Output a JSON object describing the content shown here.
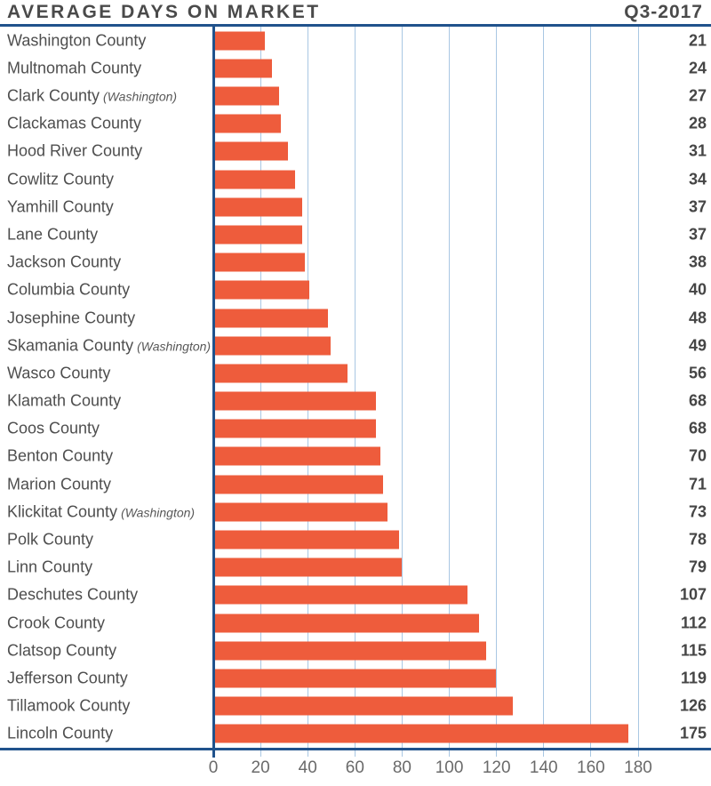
{
  "header": {
    "title": "AVERAGE DAYS ON MARKET",
    "quarter": "Q3-2017"
  },
  "chart_data": {
    "type": "bar",
    "orientation": "horizontal",
    "title": "AVERAGE DAYS ON MARKET",
    "period": "Q3-2017",
    "xlabel": "",
    "ylabel": "",
    "xlim": [
      0,
      210
    ],
    "x_ticks": [
      0,
      20,
      40,
      60,
      80,
      100,
      120,
      140,
      160,
      180
    ],
    "grid": "vertical",
    "legend": "none",
    "categories": [
      "Washington County",
      "Multnomah County",
      "Clark County",
      "Clackamas County",
      "Hood River County",
      "Cowlitz County",
      "Yamhill County",
      "Lane County",
      "Jackson County",
      "Columbia County",
      "Josephine County",
      "Skamania County",
      "Wasco County",
      "Klamath County",
      "Coos County",
      "Benton County",
      "Marion County",
      "Klickitat County",
      "Polk County",
      "Linn County",
      "Deschutes County",
      "Crook County",
      "Clatsop County",
      "Jefferson County",
      "Tillamook County",
      "Lincoln County"
    ],
    "category_suffixes": [
      "",
      "",
      "(Washington)",
      "",
      "",
      "",
      "",
      "",
      "",
      "",
      "",
      "(Washington)",
      "",
      "",
      "",
      "",
      "",
      "(Washington)",
      "",
      "",
      "",
      "",
      "",
      "",
      "",
      ""
    ],
    "values": [
      21,
      24,
      27,
      28,
      31,
      34,
      37,
      37,
      38,
      40,
      48,
      49,
      56,
      68,
      68,
      70,
      71,
      73,
      78,
      79,
      107,
      112,
      115,
      119,
      126,
      175
    ],
    "colors": {
      "bar": "#EE5C3C",
      "axis": "#20528C",
      "gridline": "#A9C7E3",
      "title_text": "#4A4A4A",
      "label_text": "#4E4E4E",
      "value_text": "#454545",
      "tick_text": "#6A6A6A"
    }
  }
}
